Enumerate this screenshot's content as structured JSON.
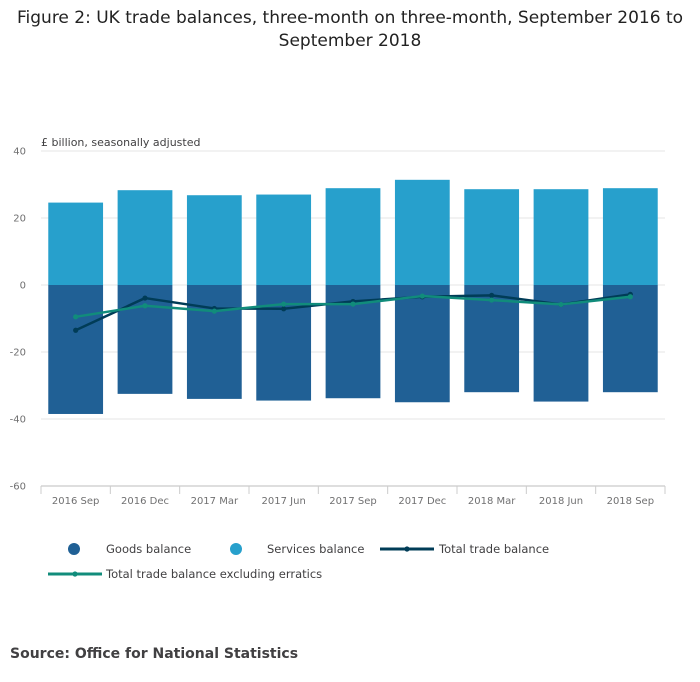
{
  "chart_data": {
    "type": "bar",
    "title": "Figure 2: UK trade balances, three-month on three-month, September 2016 to September 2018",
    "ylabel": "£ billion, seasonally adjusted",
    "xlabel": "",
    "ylim": [
      -60,
      40
    ],
    "yticks": [
      40,
      20,
      0,
      -20,
      -40,
      -60
    ],
    "grid": true,
    "categories": [
      "2016 Sep",
      "2016 Dec",
      "2017 Mar",
      "2017 Jun",
      "2017 Sep",
      "2017 Dec",
      "2018 Mar",
      "2018 Jun",
      "2018 Sep"
    ],
    "series": [
      {
        "name": "Goods balance",
        "kind": "bar",
        "color": "#206095",
        "values": [
          -38.5,
          -32.5,
          -34,
          -34.5,
          -33.8,
          -35,
          -32,
          -34.8,
          -32
        ]
      },
      {
        "name": "Services balance",
        "kind": "bar",
        "color": "#27a0cc",
        "values": [
          24.6,
          28.3,
          26.8,
          27,
          28.9,
          31.4,
          28.6,
          28.6,
          28.9
        ]
      },
      {
        "name": "Total trade balance",
        "kind": "line",
        "color": "#003c57",
        "values": [
          -13.5,
          -3.9,
          -7,
          -7.1,
          -4.9,
          -3.5,
          -3.1,
          -5.8,
          -2.8
        ]
      },
      {
        "name": "Total trade balance excluding erratics",
        "kind": "line",
        "color": "#118c7b",
        "values": [
          -9.5,
          -6.2,
          -7.8,
          -5.7,
          -5.7,
          -3.3,
          -4.5,
          -5.8,
          -3.5
        ]
      }
    ]
  },
  "source": "Source: Office for National Statistics"
}
